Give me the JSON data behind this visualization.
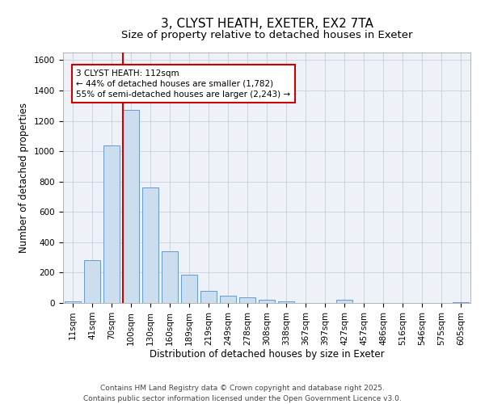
{
  "title_line1": "3, CLYST HEATH, EXETER, EX2 7TA",
  "title_line2": "Size of property relative to detached houses in Exeter",
  "xlabel": "Distribution of detached houses by size in Exeter",
  "ylabel": "Number of detached properties",
  "bar_labels": [
    "11sqm",
    "41sqm",
    "70sqm",
    "100sqm",
    "130sqm",
    "160sqm",
    "189sqm",
    "219sqm",
    "249sqm",
    "278sqm",
    "308sqm",
    "338sqm",
    "367sqm",
    "397sqm",
    "427sqm",
    "457sqm",
    "486sqm",
    "516sqm",
    "546sqm",
    "575sqm",
    "605sqm"
  ],
  "bar_values": [
    10,
    280,
    1040,
    1270,
    760,
    340,
    185,
    80,
    48,
    38,
    22,
    10,
    0,
    0,
    20,
    0,
    0,
    0,
    0,
    0,
    5
  ],
  "bar_color": "#ccddf0",
  "bar_edge_color": "#6699cc",
  "grid_color": "#c8d0dc",
  "bg_color": "#eef2f8",
  "vline_color": "#cc0000",
  "vline_index": 3,
  "annotation_text": "3 CLYST HEATH: 112sqm\n← 44% of detached houses are smaller (1,782)\n55% of semi-detached houses are larger (2,243) →",
  "annotation_box_facecolor": "#ffffff",
  "annotation_box_edgecolor": "#cc0000",
  "ylim": [
    0,
    1650
  ],
  "yticks": [
    0,
    200,
    400,
    600,
    800,
    1000,
    1200,
    1400,
    1600
  ],
  "title_fontsize": 11,
  "subtitle_fontsize": 9.5,
  "axis_label_fontsize": 8.5,
  "tick_fontsize": 7.5,
  "annotation_fontsize": 7.5,
  "footer_fontsize": 6.5,
  "footer_text": "Contains HM Land Registry data © Crown copyright and database right 2025.\nContains public sector information licensed under the Open Government Licence v3.0."
}
